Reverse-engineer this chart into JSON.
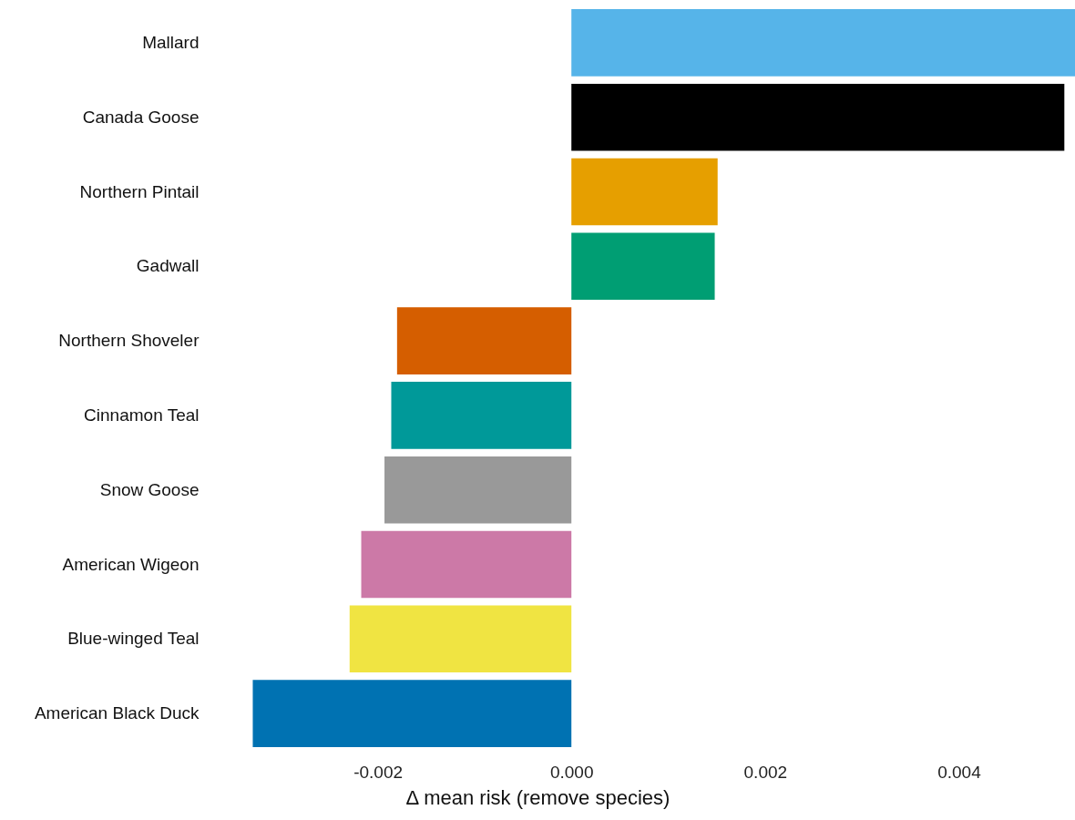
{
  "chart_data": {
    "type": "bar",
    "orientation": "horizontal",
    "xlabel": "Δ mean risk (remove species)",
    "categories": [
      "Mallard",
      "Canada Goose",
      "Northern Pintail",
      "Gadwall",
      "Northern Shoveler",
      "Cinnamon Teal",
      "Snow Goose",
      "American Wigeon",
      "Blue-winged Teal",
      "American Black Duck"
    ],
    "values": [
      0.0052,
      0.00509,
      0.00151,
      0.00148,
      -0.0018,
      -0.00186,
      -0.00193,
      -0.00217,
      -0.00229,
      -0.00329
    ],
    "colors": [
      "#56b4e9",
      "#000000",
      "#e69f00",
      "#009e73",
      "#d55e00",
      "#009999",
      "#999999",
      "#cc79a7",
      "#f0e442",
      "#0072b2"
    ],
    "xlim": [
      -0.0059,
      0.0052
    ],
    "xticks": [
      {
        "value": -0.002,
        "label": "-0.002"
      },
      {
        "value": 0,
        "label": "0.000"
      },
      {
        "value": 0.002,
        "label": "0.002"
      },
      {
        "value": 0.004,
        "label": "0.004"
      }
    ],
    "grid": false
  }
}
